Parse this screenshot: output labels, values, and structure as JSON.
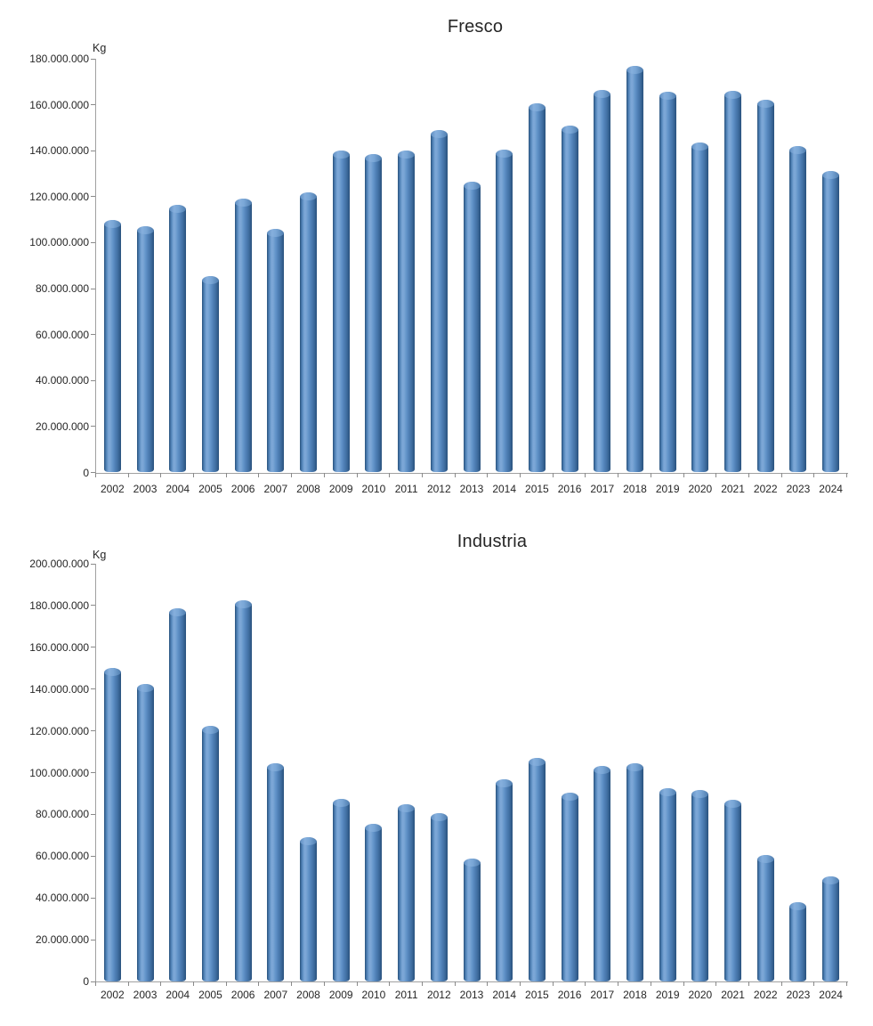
{
  "chart_data": [
    {
      "type": "bar",
      "title": "Fresco",
      "ylabel": "Kg",
      "xlabel": "",
      "grid": false,
      "legend": false,
      "ylim": [
        0,
        180000000
      ],
      "ytick_step": 20000000,
      "ytick_labels": [
        "180.000.000",
        "160.000.000",
        "140.000.000",
        "120.000.000",
        "100.000.000",
        "80.000.000",
        "60.000.000",
        "40.000.000",
        "20.000.000",
        "0"
      ],
      "categories": [
        "2002",
        "2003",
        "2004",
        "2005",
        "2006",
        "2007",
        "2008",
        "2009",
        "2010",
        "2011",
        "2012",
        "2013",
        "2014",
        "2015",
        "2016",
        "2017",
        "2018",
        "2019",
        "2020",
        "2021",
        "2022",
        "2023",
        "2024"
      ],
      "values": [
        110000000,
        107000000,
        116500000,
        85500000,
        119000000,
        106000000,
        122000000,
        140000000,
        138500000,
        140000000,
        149000000,
        126500000,
        140500000,
        160500000,
        151000000,
        166500000,
        177000000,
        165500000,
        143500000,
        166000000,
        162000000,
        142000000,
        131000000
      ]
    },
    {
      "type": "bar",
      "title": "Industria",
      "ylabel": "Kg",
      "xlabel": "",
      "grid": false,
      "legend": false,
      "ylim": [
        0,
        200000000
      ],
      "ytick_step": 20000000,
      "ytick_labels": [
        "200.000.000",
        "180.000.000",
        "160.000.000",
        "140.000.000",
        "120.000.000",
        "100.000.000",
        "80.000.000",
        "60.000.000",
        "40.000.000",
        "20.000.000",
        "0"
      ],
      "categories": [
        "2002",
        "2003",
        "2004",
        "2005",
        "2006",
        "2007",
        "2008",
        "2009",
        "2010",
        "2011",
        "2012",
        "2013",
        "2014",
        "2015",
        "2016",
        "2017",
        "2018",
        "2019",
        "2020",
        "2021",
        "2022",
        "2023",
        "2024"
      ],
      "values": [
        150000000,
        142500000,
        178500000,
        122500000,
        182500000,
        104500000,
        69000000,
        87500000,
        75500000,
        85000000,
        80500000,
        59000000,
        97000000,
        107000000,
        90500000,
        103000000,
        104500000,
        92500000,
        91500000,
        87000000,
        60500000,
        38000000,
        50500000
      ]
    }
  ],
  "colors": {
    "background": "#ffffff",
    "bar_main": "#5585bb",
    "bar_highlight": "#7ca7d7",
    "bar_edge_dark": "#2b527d",
    "axis_line": "#a0a0a0",
    "tick_mark": "#8a8a8a",
    "text": "#262626"
  }
}
